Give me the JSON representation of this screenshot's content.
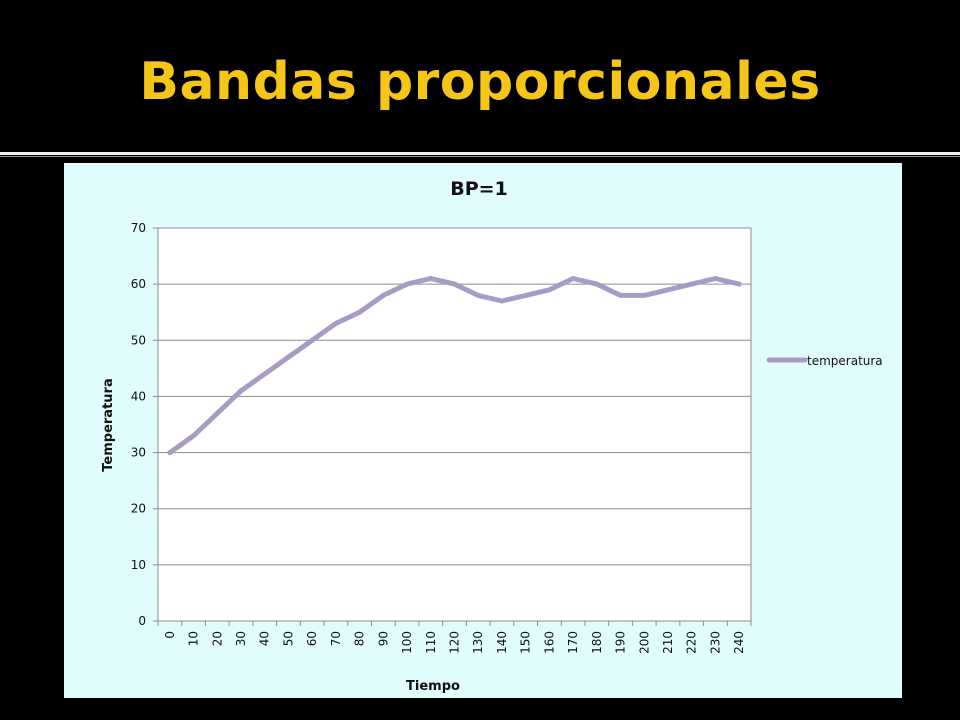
{
  "slide": {
    "title": "Bandas proporcionales"
  },
  "colors": {
    "background": "#000000",
    "title": "#F5C518",
    "chart_area": "#E1FCFC",
    "plot_area": "#FFFFFF",
    "series_line": "#A99CC4",
    "gridline": "#8C8C8C"
  },
  "chart_data": {
    "type": "line",
    "title": "BP=1",
    "xlabel": "Tiempo",
    "ylabel": "Temperatura",
    "categories": [
      "0",
      "10",
      "20",
      "30",
      "40",
      "50",
      "60",
      "70",
      "80",
      "90",
      "100",
      "110",
      "120",
      "130",
      "140",
      "150",
      "160",
      "170",
      "180",
      "190",
      "200",
      "210",
      "220",
      "230",
      "240"
    ],
    "series": [
      {
        "name": "temperatura",
        "values": [
          30,
          33,
          37,
          41,
          44,
          47,
          50,
          53,
          55,
          58,
          60,
          61,
          60,
          58,
          57,
          58,
          59,
          61,
          60,
          58,
          58,
          59,
          60,
          61,
          60
        ]
      }
    ],
    "ylim": [
      0,
      70
    ],
    "yticks": [
      "0",
      "10",
      "20",
      "30",
      "40",
      "50",
      "60",
      "70"
    ],
    "grid": true,
    "legend_position": "right"
  }
}
